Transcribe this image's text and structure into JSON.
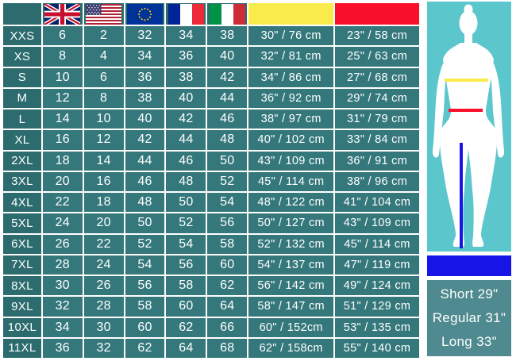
{
  "table": {
    "header": {
      "corner": "",
      "flag_columns": [
        "uk-flag",
        "us-flag",
        "eu-flag",
        "france-flag",
        "italy-flag"
      ],
      "chest_column_color": "#F9EB4B",
      "waist_column_color": "#F8102A"
    },
    "rows": [
      {
        "size": "XXS",
        "uk": "6",
        "us": "2",
        "eu": "32",
        "fr": "34",
        "it": "38",
        "chest": "30\" / 76 cm",
        "waist": "23\" / 58 cm"
      },
      {
        "size": "XS",
        "uk": "8",
        "us": "4",
        "eu": "34",
        "fr": "36",
        "it": "40",
        "chest": "32\" / 81 cm",
        "waist": "25\" / 63 cm"
      },
      {
        "size": "S",
        "uk": "10",
        "us": "6",
        "eu": "36",
        "fr": "38",
        "it": "42",
        "chest": "34\" / 86 cm",
        "waist": "27\" / 68 cm"
      },
      {
        "size": "M",
        "uk": "12",
        "us": "8",
        "eu": "38",
        "fr": "40",
        "it": "44",
        "chest": "36\" / 92 cm",
        "waist": "29\" / 74 cm"
      },
      {
        "size": "L",
        "uk": "14",
        "us": "10",
        "eu": "40",
        "fr": "42",
        "it": "46",
        "chest": "38\" / 97 cm",
        "waist": "31\" / 79 cm"
      },
      {
        "size": "XL",
        "uk": "16",
        "us": "12",
        "eu": "42",
        "fr": "44",
        "it": "48",
        "chest": "40\" / 102 cm",
        "waist": "33\" / 84 cm"
      },
      {
        "size": "2XL",
        "uk": "18",
        "us": "14",
        "eu": "44",
        "fr": "46",
        "it": "50",
        "chest": "43\" / 109 cm",
        "waist": "36\" / 91 cm"
      },
      {
        "size": "3XL",
        "uk": "20",
        "us": "16",
        "eu": "46",
        "fr": "48",
        "it": "52",
        "chest": "45\" / 114 cm",
        "waist": "38\" / 96 cm"
      },
      {
        "size": "4XL",
        "uk": "22",
        "us": "18",
        "eu": "48",
        "fr": "50",
        "it": "54",
        "chest": "48\" / 122 cm",
        "waist": "41\" / 104 cm"
      },
      {
        "size": "5XL",
        "uk": "24",
        "us": "20",
        "eu": "50",
        "fr": "52",
        "it": "56",
        "chest": "50\" / 127 cm",
        "waist": "43\" / 109 cm"
      },
      {
        "size": "6XL",
        "uk": "26",
        "us": "22",
        "eu": "52",
        "fr": "54",
        "it": "58",
        "chest": "52\" / 132 cm",
        "waist": "45\" / 114 cm"
      },
      {
        "size": "7XL",
        "uk": "28",
        "us": "24",
        "eu": "54",
        "fr": "56",
        "it": "60",
        "chest": "54\" / 137 cm",
        "waist": "47\" / 119 cm"
      },
      {
        "size": "8XL",
        "uk": "30",
        "us": "26",
        "eu": "56",
        "fr": "58",
        "it": "62",
        "chest": "56\" / 142 cm",
        "waist": "49\" / 124 cm"
      },
      {
        "size": "9XL",
        "uk": "32",
        "us": "28",
        "eu": "58",
        "fr": "60",
        "it": "64",
        "chest": "58\" / 147 cm",
        "waist": "51\" / 129 cm"
      },
      {
        "size": "10XL",
        "uk": "34",
        "us": "30",
        "eu": "60",
        "fr": "62",
        "it": "66",
        "chest": "60\" / 152cm",
        "waist": "53\" / 135 cm"
      },
      {
        "size": "11XL",
        "uk": "36",
        "us": "32",
        "eu": "62",
        "fr": "64",
        "it": "68",
        "chest": "62\" / 158cm",
        "waist": "55\" / 140 cm"
      }
    ]
  },
  "side_panel": {
    "lengths": [
      "Short 29\"",
      "Regular 31\"",
      "Long 33\""
    ],
    "line_colors": {
      "chest": "#F9EB4B",
      "waist": "#F8102A",
      "inseam": "#1714E8"
    }
  },
  "colors": {
    "cell_teal": "#35787C",
    "label_teal": "#2C6B6E",
    "panel_turquoise": "#5BC7CC",
    "length_block_teal": "#4E8A8F",
    "border_white": "#FFFFFF"
  }
}
